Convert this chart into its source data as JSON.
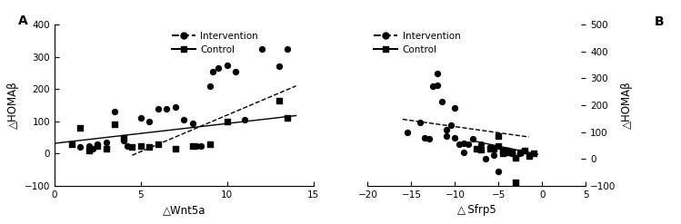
{
  "panel_A": {
    "intervention_x": [
      1.5,
      2.0,
      2.2,
      2.5,
      3.0,
      3.5,
      4.0,
      4.2,
      5.0,
      5.5,
      6.0,
      6.5,
      7.0,
      7.5,
      8.0,
      8.2,
      8.5,
      9.0,
      9.2,
      9.5,
      10.0,
      10.5,
      11.0,
      12.0,
      13.0,
      13.5
    ],
    "intervention_y": [
      20,
      25,
      15,
      30,
      35,
      130,
      40,
      25,
      110,
      100,
      140,
      140,
      145,
      105,
      95,
      25,
      25,
      210,
      255,
      265,
      275,
      255,
      105,
      325,
      270,
      325
    ],
    "control_x": [
      1.0,
      1.5,
      2.0,
      2.5,
      3.0,
      3.5,
      4.0,
      4.5,
      5.0,
      5.5,
      6.0,
      7.0,
      8.0,
      9.0,
      10.0,
      13.0,
      13.5
    ],
    "control_y": [
      30,
      80,
      10,
      25,
      15,
      90,
      50,
      20,
      25,
      20,
      30,
      15,
      25,
      30,
      100,
      165,
      110
    ],
    "intervention_line_x": [
      4.5,
      14.0
    ],
    "intervention_line_y": [
      -5,
      210
    ],
    "control_line_x": [
      0,
      14.0
    ],
    "control_line_y": [
      32,
      118
    ],
    "xlabel": "△Wnt5a",
    "ylabel": "△HOMAβ",
    "xlim": [
      0,
      15
    ],
    "ylim": [
      -100,
      400
    ],
    "xticks": [
      0,
      5,
      10,
      15
    ],
    "yticks": [
      -100,
      0,
      100,
      200,
      300,
      400
    ],
    "label": "A"
  },
  "panel_B": {
    "intervention_x": [
      -15.5,
      -14.0,
      -13.5,
      -13.0,
      -12.5,
      -12.0,
      -12.0,
      -11.5,
      -11.0,
      -11.0,
      -10.5,
      -10.0,
      -10.0,
      -9.5,
      -9.0,
      -9.0,
      -8.5,
      -8.0,
      -7.0,
      -6.5,
      -6.0,
      -5.5,
      -5.0,
      -4.5,
      -4.0,
      -3.5,
      -3.0,
      -2.5,
      -2.0
    ],
    "intervention_y": [
      100,
      135,
      80,
      75,
      270,
      320,
      275,
      215,
      110,
      85,
      125,
      190,
      80,
      55,
      60,
      25,
      55,
      75,
      55,
      0,
      45,
      15,
      -45,
      20,
      30,
      20,
      5,
      20,
      30
    ],
    "control_x": [
      -7.5,
      -7.0,
      -6.0,
      -5.5,
      -5.0,
      -5.0,
      -4.5,
      -4.5,
      -4.0,
      -4.0,
      -3.5,
      -3.5,
      -3.0,
      -3.0,
      -2.5,
      -2.0,
      -1.5,
      -1.0
    ],
    "control_y": [
      40,
      35,
      40,
      40,
      85,
      50,
      30,
      20,
      30,
      25,
      25,
      25,
      5,
      -85,
      25,
      30,
      10,
      20
    ],
    "intervention_line_x": [
      -16,
      -1.5
    ],
    "intervention_line_y": [
      148,
      82
    ],
    "control_line_x": [
      -8.0,
      -0.5
    ],
    "control_line_y": [
      68,
      18
    ],
    "xlabel": "△ Sfrp5",
    "ylabel": "△HOMAβ",
    "xlim": [
      -20,
      5
    ],
    "ylim": [
      -100,
      500
    ],
    "xticks": [
      -20,
      -15,
      -10,
      -5,
      0,
      5
    ],
    "yticks": [
      -100,
      0,
      100,
      200,
      300,
      400,
      500
    ],
    "label": "B"
  },
  "legend_intervention_label": "Intervention",
  "legend_control_label": "Control",
  "marker_color": "black",
  "line_color": "black"
}
